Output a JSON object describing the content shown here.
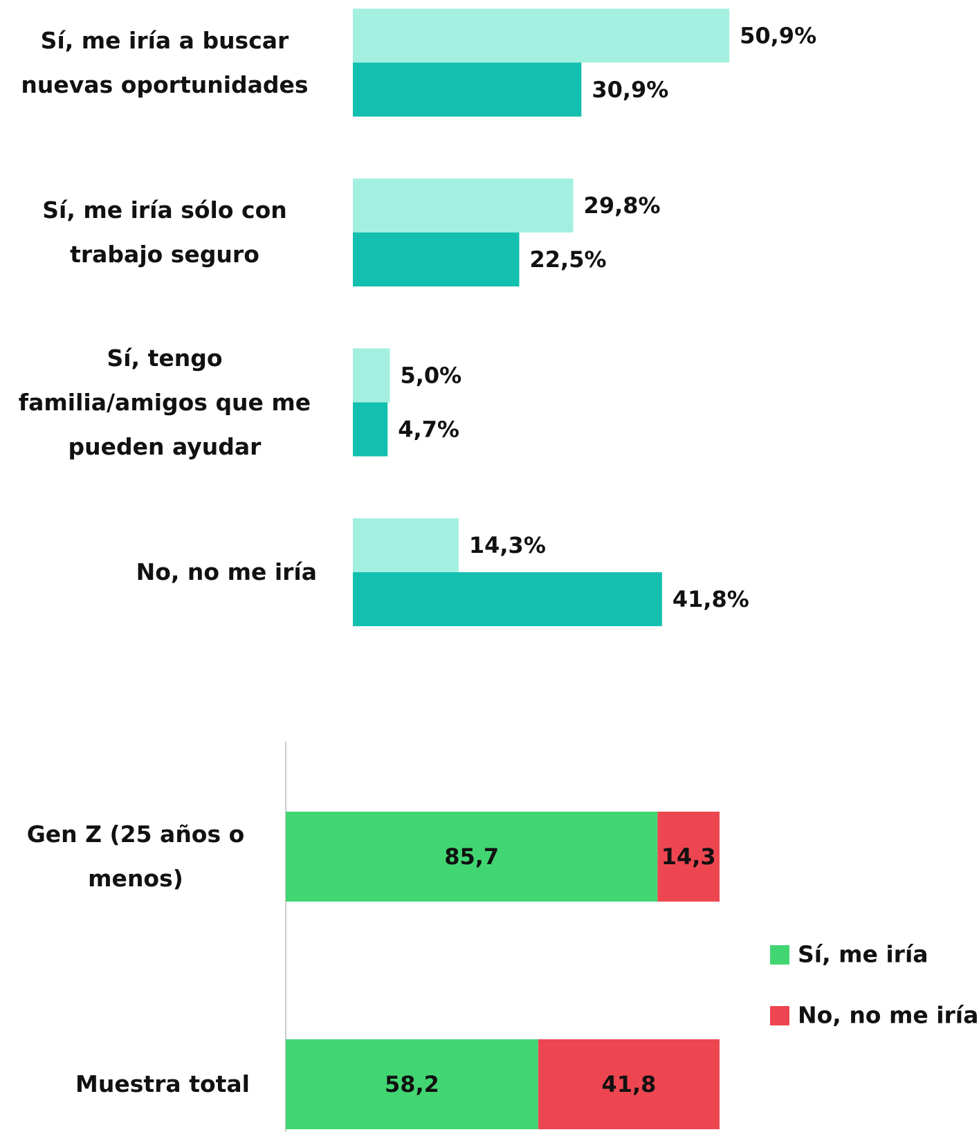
{
  "chart_data": [
    {
      "type": "bar",
      "categories": [
        "Sí, me iría a buscar nuevas oportunidades",
        "Sí, me iría sólo con trabajo seguro",
        "Sí, tengo familia/amigos que me pueden ayudar",
        "No, no me iría"
      ],
      "series": [
        {
          "color": "#a3f0e0",
          "values": [
            50.9,
            29.8,
            5.0,
            14.3
          ],
          "value_labels": [
            "50,9%",
            "29,8%",
            "5,0%",
            "14,3%"
          ]
        },
        {
          "color": "#13bfae",
          "values": [
            30.9,
            22.5,
            4.7,
            41.8
          ],
          "value_labels": [
            "30,9%",
            "22,5%",
            "4,7%",
            "41,8%"
          ]
        }
      ]
    },
    {
      "type": "stacked_bar",
      "categories": [
        "Gen Z (25 años o menos)",
        "Muestra total"
      ],
      "series": [
        {
          "name": "Sí, me iría",
          "color": "#42d673",
          "values": [
            85.7,
            58.2
          ],
          "value_labels": [
            "85,7",
            "58,2"
          ]
        },
        {
          "name": "No, no me iría",
          "color": "#ee4651",
          "values": [
            14.3,
            41.8
          ],
          "value_labels": [
            "14,3",
            "41,8"
          ]
        }
      ],
      "legend": "right"
    }
  ]
}
